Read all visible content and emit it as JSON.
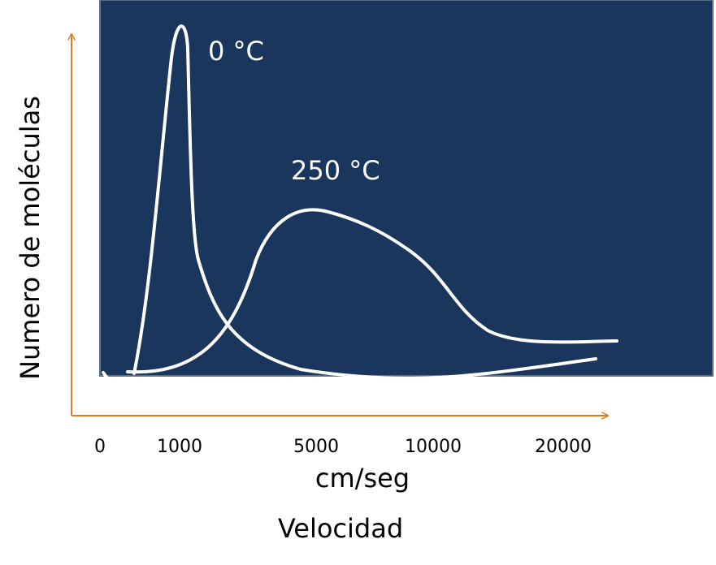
{
  "chart_data": {
    "type": "line",
    "title": "",
    "ylabel": "Numero de moléculas",
    "xlabel_unit": "cm/seg",
    "xlabel": "Velocidad",
    "x_tick_labels": [
      "0",
      "1000",
      "5000",
      "10000",
      "20000"
    ],
    "grid": false,
    "colors": {
      "plot_background": "#1b365d",
      "axis": "#e07b24",
      "curve": "#ffffff"
    },
    "series": [
      {
        "name": "0 °C",
        "points": [
          [
            0,
            0
          ],
          [
            500,
            2
          ],
          [
            800,
            40
          ],
          [
            1000,
            100
          ],
          [
            1300,
            80
          ],
          [
            1600,
            25
          ],
          [
            2400,
            8
          ],
          [
            5000,
            1
          ],
          [
            10000,
            0
          ],
          [
            14000,
            1
          ],
          [
            20000,
            5
          ]
        ]
      },
      {
        "name": "250 °C",
        "points": [
          [
            500,
            1
          ],
          [
            1200,
            3
          ],
          [
            2500,
            14
          ],
          [
            3500,
            35
          ],
          [
            5000,
            50
          ],
          [
            7000,
            46
          ],
          [
            10000,
            34
          ],
          [
            12500,
            15
          ],
          [
            15000,
            11
          ],
          [
            20000,
            11
          ]
        ]
      }
    ]
  }
}
